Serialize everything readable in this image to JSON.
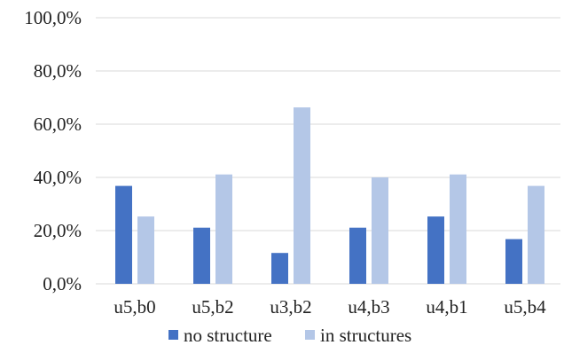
{
  "chart_data": {
    "type": "bar",
    "title": "",
    "xlabel": "",
    "ylabel": "",
    "categories": [
      "u5,b0",
      "u5,b2",
      "u3,b2",
      "u4,b3",
      "u4,b1",
      "u5,b4"
    ],
    "series": [
      {
        "name": "no structure",
        "color": "#4472c4",
        "values": [
          36.8,
          21.1,
          11.6,
          21.1,
          25.3,
          16.8
        ]
      },
      {
        "name": "in structures",
        "color": "#b4c7e7",
        "values": [
          25.3,
          41.1,
          66.3,
          40.0,
          41.1,
          36.8
        ]
      }
    ],
    "ylim": [
      0,
      100
    ],
    "yticks": [
      0,
      20,
      40,
      60,
      80,
      100
    ],
    "ytick_labels": [
      "0,0%",
      "20,0%",
      "40,0%",
      "60,0%",
      "80,0%",
      "100,0%"
    ],
    "grid": true,
    "legend_position": "bottom"
  }
}
